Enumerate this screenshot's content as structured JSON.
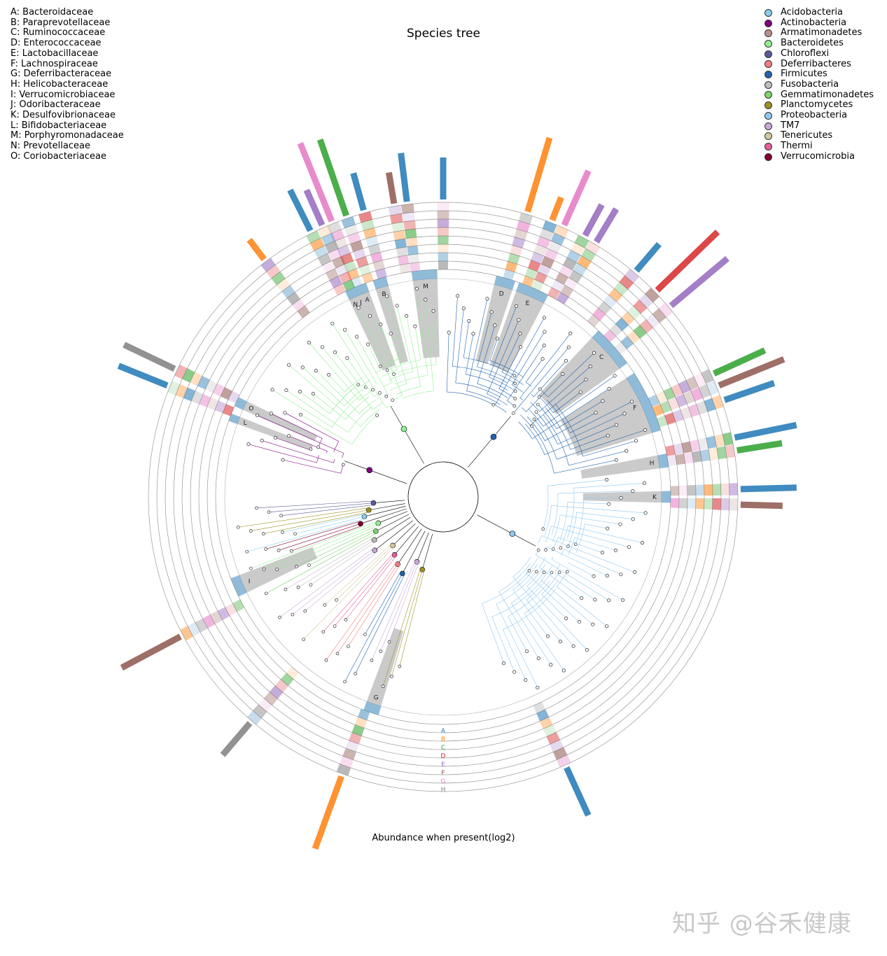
{
  "title": "Species tree",
  "xlabel": "Abundance when present(log2)",
  "watermark": "知乎 @谷禾健康",
  "clades": [
    {
      "letter": "A",
      "name": "A: Bacteroidaceae"
    },
    {
      "letter": "B",
      "name": "B: Paraprevotellaceae"
    },
    {
      "letter": "C",
      "name": "C: Ruminococcaceae"
    },
    {
      "letter": "D",
      "name": "D: Enterococcaceae"
    },
    {
      "letter": "E",
      "name": "E: Lactobacillaceae"
    },
    {
      "letter": "F",
      "name": "F: Lachnospiraceae"
    },
    {
      "letter": "G",
      "name": "G: Deferribacteraceae"
    },
    {
      "letter": "H",
      "name": "H: Helicobacteraceae"
    },
    {
      "letter": "I",
      "name": "I: Verrucomicrobiaceae"
    },
    {
      "letter": "J",
      "name": "J: Odoribacteraceae"
    },
    {
      "letter": "K",
      "name": "K: Desulfovibrionaceae"
    },
    {
      "letter": "L",
      "name": "L: Bifidobacteriaceae"
    },
    {
      "letter": "M",
      "name": "M: Porphyromonadaceae"
    },
    {
      "letter": "N",
      "name": "N: Prevotellaceae"
    },
    {
      "letter": "O",
      "name": "O: Coriobacteriaceae"
    }
  ],
  "phyla": [
    {
      "name": "Acidobacteria",
      "color": "#87ceeb"
    },
    {
      "name": "Actinobacteria",
      "color": "#800080"
    },
    {
      "name": "Armatimonadetes",
      "color": "#bc8f8f"
    },
    {
      "name": "Bacteroidetes",
      "color": "#90ee90"
    },
    {
      "name": "Chloroflexi",
      "color": "#5a5a9a"
    },
    {
      "name": "Deferribacteres",
      "color": "#f08080"
    },
    {
      "name": "Firmicutes",
      "color": "#1f63b0"
    },
    {
      "name": "Fusobacteria",
      "color": "#bdbdbd"
    },
    {
      "name": "Gemmatimonadetes",
      "color": "#7fd36e"
    },
    {
      "name": "Planctomycetes",
      "color": "#a09020"
    },
    {
      "name": "Proteobacteria",
      "color": "#8ec8f0"
    },
    {
      "name": "TM7",
      "color": "#c8a8d8"
    },
    {
      "name": "Tenericutes",
      "color": "#d2c89a"
    },
    {
      "name": "Thermi",
      "color": "#e0609a"
    },
    {
      "name": "Verrucomicrobia",
      "color": "#800030"
    }
  ],
  "ring_labels": [
    "A",
    "B",
    "C",
    "D",
    "E",
    "F",
    "G",
    "H"
  ],
  "ring_colors": [
    "#1f77b4",
    "#ff7f0e",
    "#2ca02c",
    "#d62728",
    "#9467bd",
    "#8c564b",
    "#e377c2",
    "#7f7f7f"
  ],
  "clade_arcs": [
    {
      "label": "N",
      "from": -25.5,
      "to": -23.5
    },
    {
      "label": "J",
      "from": -23.5,
      "to": -22.3
    },
    {
      "label": "A",
      "from": -22.3,
      "to": -19.8
    },
    {
      "label": "B",
      "from": -18.0,
      "to": -14.5
    },
    {
      "label": "M",
      "from": -8.0,
      "to": -1.5
    },
    {
      "label": "D",
      "from": 13.5,
      "to": 18.5
    },
    {
      "label": "E",
      "from": 19.5,
      "to": 27.5
    },
    {
      "label": "C",
      "from": 43.0,
      "to": 54.0
    },
    {
      "label": "F",
      "from": 57.0,
      "to": 73.0
    },
    {
      "label": "H",
      "from": 79.0,
      "to": 82.5
    },
    {
      "label": "K",
      "from": 88.5,
      "to": 91.5
    },
    {
      "label": "L",
      "from": -70.5,
      "to": -68.5
    },
    {
      "label": "O",
      "from": -66.5,
      "to": -64.0
    },
    {
      "label": "I",
      "from": -116.0,
      "to": -111.0
    },
    {
      "label": "G",
      "from": -163.5,
      "to": -159.5
    }
  ],
  "outer_bars": [
    {
      "angle": -22.0,
      "length": 120,
      "color": "#e377c2"
    },
    {
      "angle": -19.0,
      "length": 115,
      "color": "#2ca02c"
    },
    {
      "angle": -24.0,
      "length": 55,
      "color": "#9467bd"
    },
    {
      "angle": -26.5,
      "length": 65,
      "color": "#1f77b4"
    },
    {
      "angle": -15.5,
      "length": 55,
      "color": "#1f77b4"
    },
    {
      "angle": -9.5,
      "length": 45,
      "color": "#8c564b"
    },
    {
      "angle": -7.0,
      "length": 70,
      "color": "#1f77b4"
    },
    {
      "angle": 0.0,
      "length": 60,
      "color": "#1f77b4"
    },
    {
      "angle": 16.5,
      "length": 110,
      "color": "#ff7f0e"
    },
    {
      "angle": 21.5,
      "length": 35,
      "color": "#ff7f0e"
    },
    {
      "angle": 24.0,
      "length": 85,
      "color": "#e377c2"
    },
    {
      "angle": 28.5,
      "length": 50,
      "color": "#9467bd"
    },
    {
      "angle": 31.0,
      "length": 55,
      "color": "#9467bd"
    },
    {
      "angle": 40.5,
      "length": 50,
      "color": "#1f77b4"
    },
    {
      "angle": 46.0,
      "length": 120,
      "color": "#d62728"
    },
    {
      "angle": 50.0,
      "length": 105,
      "color": "#9467bd"
    },
    {
      "angle": 65.5,
      "length": 80,
      "color": "#2ca02c"
    },
    {
      "angle": 68.0,
      "length": 100,
      "color": "#8c564b"
    },
    {
      "angle": 71.0,
      "length": 75,
      "color": "#1f77b4"
    },
    {
      "angle": 78.5,
      "length": 90,
      "color": "#1f77b4"
    },
    {
      "angle": 81.0,
      "length": 65,
      "color": "#2ca02c"
    },
    {
      "angle": 88.5,
      "length": 80,
      "color": "#1f77b4"
    },
    {
      "angle": 91.5,
      "length": 60,
      "color": "#8c564b"
    },
    {
      "angle": 155.5,
      "length": 75,
      "color": "#1f77b4"
    },
    {
      "angle": -160.0,
      "length": 110,
      "color": "#ff7f0e"
    },
    {
      "angle": -139.5,
      "length": 60,
      "color": "#7f7f7f"
    },
    {
      "angle": -118.0,
      "length": 95,
      "color": "#8c564b"
    },
    {
      "angle": -68.0,
      "length": 75,
      "color": "#1f77b4"
    },
    {
      "angle": -64.5,
      "length": 80,
      "color": "#7f7f7f"
    },
    {
      "angle": -37.0,
      "length": 35,
      "color": "#ff7f0e"
    }
  ]
}
